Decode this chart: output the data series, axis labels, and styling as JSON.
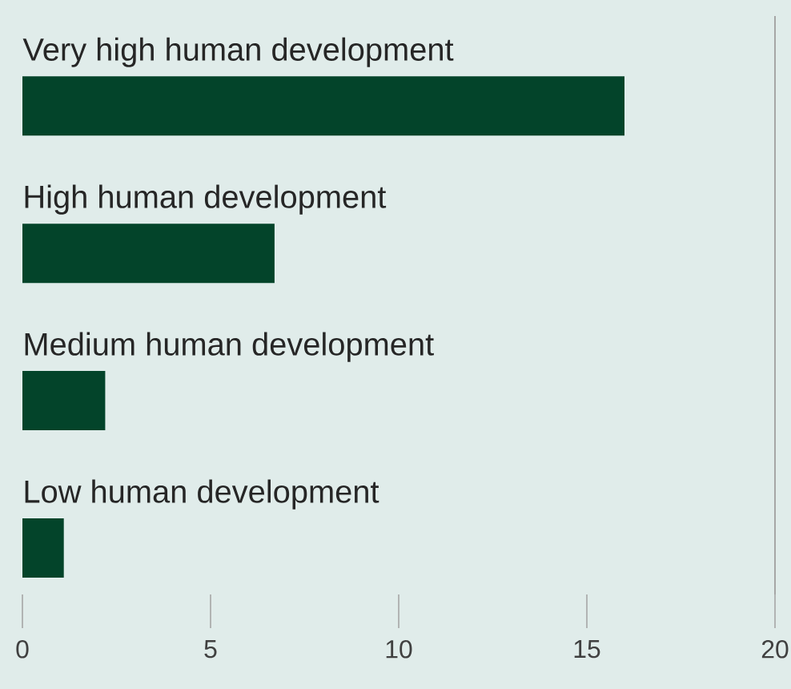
{
  "chart_data": {
    "type": "bar",
    "orientation": "horizontal",
    "categories": [
      "Very high human development",
      "High human development",
      "Medium human development",
      "Low human development"
    ],
    "values": [
      16.0,
      6.7,
      2.2,
      1.1
    ],
    "color": "#03442a",
    "xlim": [
      0,
      20
    ],
    "xticks": [
      0,
      5,
      10,
      15,
      20
    ]
  }
}
